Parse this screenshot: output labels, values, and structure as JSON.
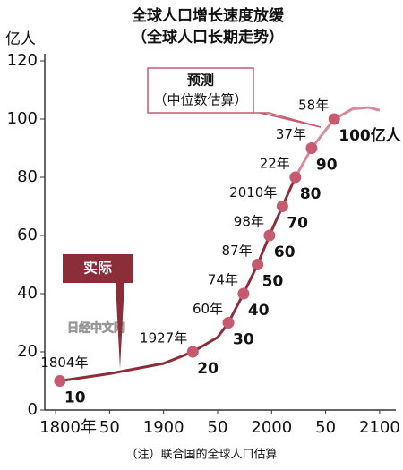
{
  "chart_data": {
    "type": "line",
    "title": "全球人口增长速度放缓",
    "subtitle": "（全球人口长期走势）",
    "y_label": "亿人",
    "xlim": [
      1790,
      2115
    ],
    "ylim": [
      0,
      120
    ],
    "xticks": [
      {
        "value": 1800,
        "label": "1800年"
      },
      {
        "value": 1850,
        "label": "50"
      },
      1900,
      {
        "value": 1950,
        "label": "50"
      },
      2000,
      {
        "value": 2050,
        "label": "50"
      },
      2100
    ],
    "yticks": [
      0,
      20,
      40,
      60,
      80,
      100,
      120
    ],
    "series": [
      {
        "name": "实际",
        "color": "#8b2e3a",
        "x": [
          1804,
          1850,
          1900,
          1927,
          1950,
          1960,
          1974,
          1987,
          1998,
          2010,
          2022
        ],
        "values": [
          10,
          12.5,
          16,
          20,
          25,
          30,
          40,
          50,
          60,
          70,
          80
        ]
      },
      {
        "name": "预测",
        "color": "#d98a98",
        "x": [
          2022,
          2037,
          2058,
          2075,
          2090,
          2100
        ],
        "values": [
          80,
          90,
          100,
          103.5,
          104,
          103
        ]
      }
    ],
    "points": {
      "color": "#c65a6e",
      "x": [
        1804,
        1927,
        1960,
        1974,
        1987,
        1998,
        2010,
        2022,
        2037,
        2058
      ],
      "values": [
        10,
        20,
        30,
        40,
        50,
        60,
        70,
        80,
        90,
        100
      ],
      "x_labels": [
        "1804年",
        "1927年",
        "60年",
        "74年",
        "87年",
        "98年",
        "2010年",
        "22年",
        "37年",
        "58年"
      ],
      "value_labels": [
        "10",
        "20",
        "30",
        "40",
        "50",
        "60",
        "70",
        "80",
        "90",
        "100亿人"
      ]
    },
    "forecast_note": "（中位数估算）",
    "watermark": "日经中文网",
    "footnote": "（注）联合国的全球人口估算"
  }
}
